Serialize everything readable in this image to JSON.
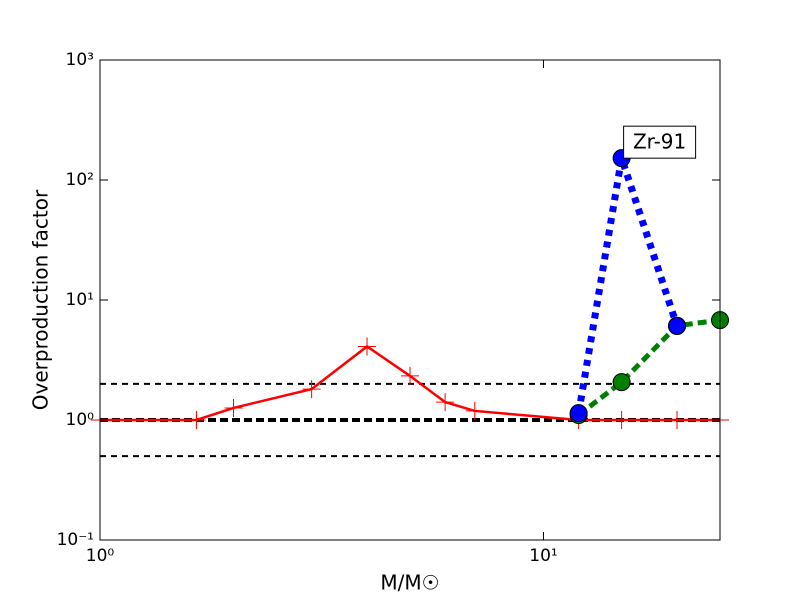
{
  "chart_data": {
    "type": "line",
    "xlabel": "M/M☉",
    "ylabel": "Overproduction factor",
    "annotation": "Zr-91",
    "xscale": "log",
    "yscale": "log",
    "xlim": [
      1,
      25
    ],
    "ylim": [
      0.1,
      1000
    ],
    "xticks": [
      {
        "value": 1,
        "label": "10⁰"
      },
      {
        "value": 10,
        "label": "10¹"
      }
    ],
    "yticks": [
      {
        "value": 0.1,
        "label": "10⁻¹"
      },
      {
        "value": 1,
        "label": "10⁰"
      },
      {
        "value": 10,
        "label": "10¹"
      },
      {
        "value": 100,
        "label": "10²"
      },
      {
        "value": 1000,
        "label": "10³"
      }
    ],
    "reference_lines": [
      0.5,
      1,
      2
    ],
    "series": [
      {
        "color": "#ff0000",
        "style": "solid",
        "marker": "plus",
        "x": [
          1,
          1.65,
          2,
          3,
          4,
          5,
          6,
          7,
          12,
          15,
          20,
          25
        ],
        "values": [
          1,
          1,
          1.26,
          1.81,
          4.1,
          2.33,
          1.41,
          1.19,
          1,
          1,
          1,
          1
        ]
      },
      {
        "color": "#008000",
        "style": "dashed",
        "marker": "circle",
        "x": [
          12,
          15,
          20,
          25
        ],
        "values": [
          1.1,
          2.07,
          6.1,
          6.8
        ]
      },
      {
        "color": "#0000ff",
        "style": "dotted",
        "marker": "circle",
        "x": [
          12,
          15,
          20
        ],
        "values": [
          1.14,
          152,
          6.07
        ]
      }
    ]
  }
}
